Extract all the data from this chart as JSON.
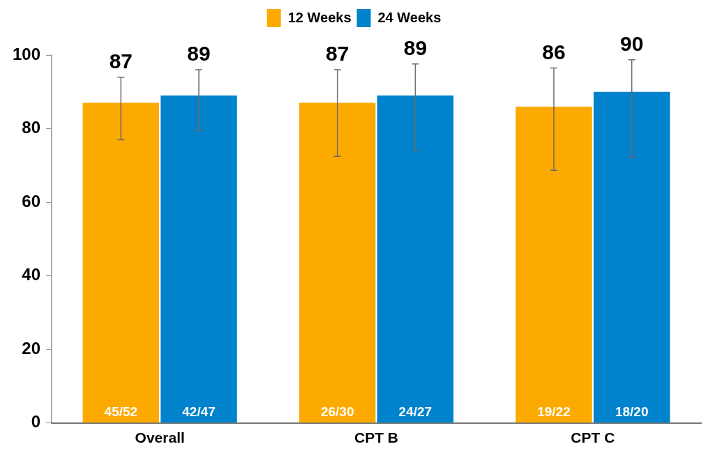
{
  "chart_data": {
    "type": "bar",
    "categories": [
      "Overall",
      "CPT B",
      "CPT C"
    ],
    "series": [
      {
        "name": "12 Weeks",
        "color": "#fcaa00",
        "values": [
          87,
          87,
          86
        ],
        "errors": [
          [
            77,
            94
          ],
          [
            72.5,
            96
          ],
          [
            68.7,
            96.5
          ]
        ]
      },
      {
        "name": "24 Weeks",
        "color": "#0083cc",
        "values": [
          89,
          89,
          90
        ],
        "errors": [
          [
            79.5,
            96
          ],
          [
            74,
            97.6
          ],
          [
            72.3,
            98.7
          ]
        ]
      }
    ],
    "ylim": [
      0,
      100
    ],
    "yticks": [
      0,
      20,
      40,
      60,
      80,
      100
    ],
    "grid": false,
    "legend": "top",
    "data_labels": true,
    "annotations": [
      {
        "text": "45/52",
        "x": "Overall",
        "y": 0
      },
      {
        "text": "42/47",
        "x": "Overall",
        "y": 0
      },
      {
        "text": "26/30",
        "x": "CPT B",
        "y": 0
      },
      {
        "text": "24/27",
        "x": "CPT B",
        "y": 0
      },
      {
        "text": "19/22",
        "x": "CPT C",
        "y": 0
      },
      {
        "text": "18/20",
        "x": "CPT C",
        "y": 0
      }
    ]
  }
}
